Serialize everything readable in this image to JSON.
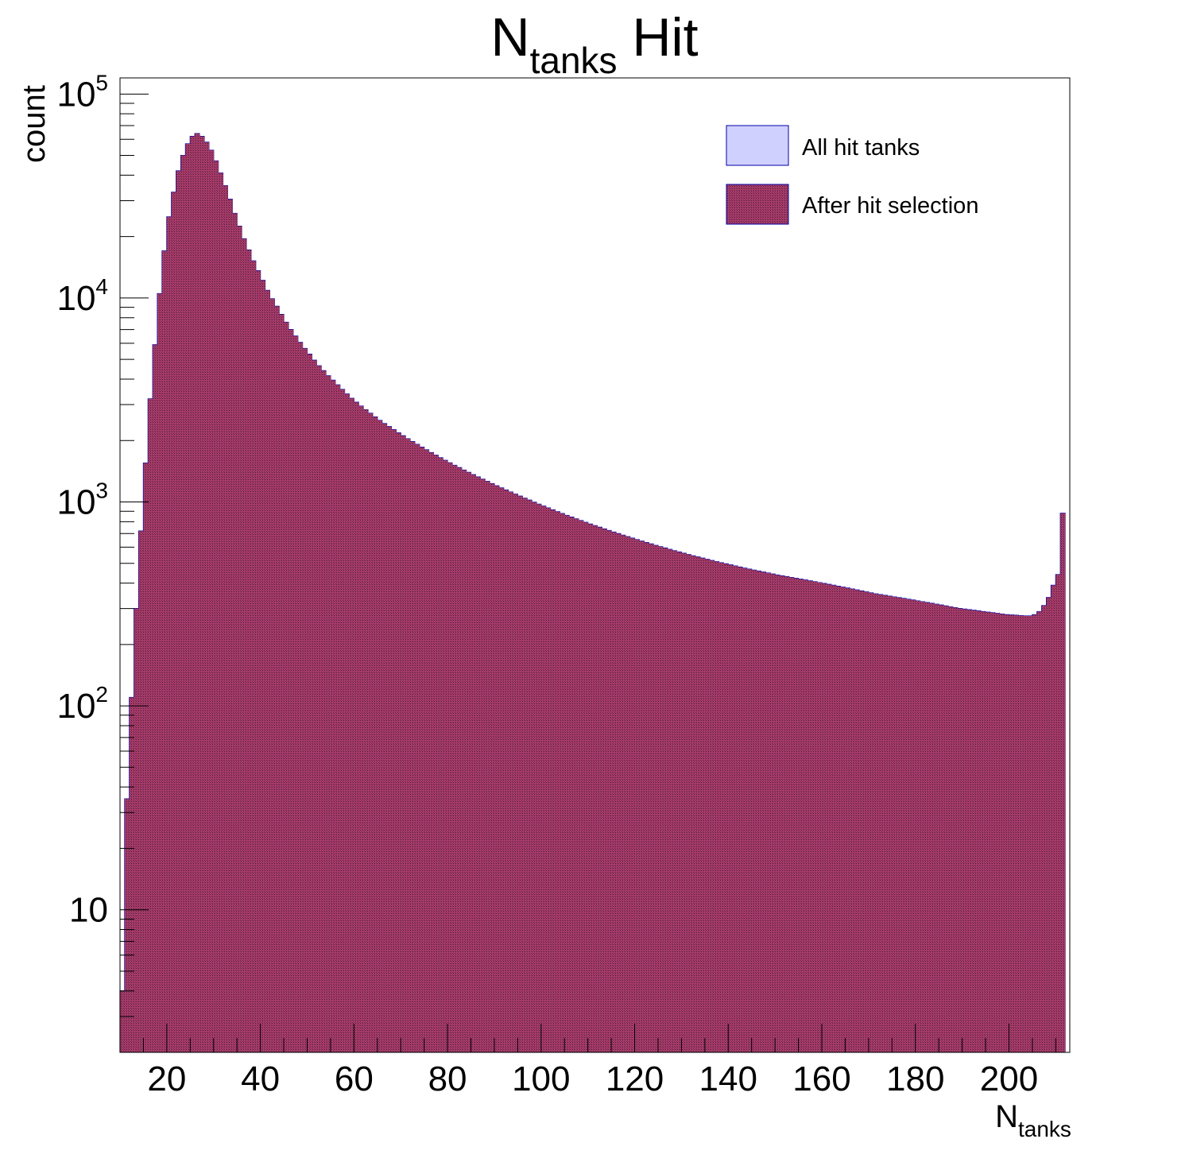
{
  "chart_data": {
    "type": "bar",
    "title": {
      "main": "N",
      "sub": "tanks",
      "rest": " Hit"
    },
    "xlabel": {
      "main": "N",
      "sub": "tanks"
    },
    "ylabel": "count",
    "xlim": [
      10,
      213
    ],
    "ylim": [
      2.0,
      120000
    ],
    "y_log_scale": true,
    "grid": false,
    "legend_position": "top-right",
    "x_ticks": [
      "20",
      "40",
      "60",
      "80",
      "100",
      "120",
      "140",
      "160",
      "180",
      "200"
    ],
    "y_ticks": [
      {
        "base": "10",
        "exp": ""
      },
      {
        "base": "10",
        "exp": "2"
      },
      {
        "base": "10",
        "exp": "3"
      },
      {
        "base": "10",
        "exp": "4"
      },
      {
        "base": "10",
        "exp": "5"
      }
    ],
    "bin_start": 10,
    "bin_width": 1,
    "series": [
      {
        "name": "All hit tanks",
        "color": "#d0d0ff",
        "edge_color": "#0000aa",
        "values": [
          4,
          35,
          110,
          300,
          720,
          1550,
          3200,
          5900,
          10500,
          17000,
          25000,
          33000,
          42000,
          50000,
          57000,
          62000,
          64000,
          62000,
          58000,
          53000,
          47000,
          41000,
          35500,
          30500,
          26000,
          22500,
          19500,
          17200,
          15200,
          13600,
          12200,
          10900,
          9900,
          9100,
          8300,
          7600,
          7000,
          6500,
          6050,
          5650,
          5300,
          4950,
          4650,
          4400,
          4150,
          3950,
          3750,
          3560,
          3380,
          3220,
          3080,
          2950,
          2830,
          2720,
          2610,
          2510,
          2420,
          2340,
          2260,
          2180,
          2110,
          2040,
          1975,
          1915,
          1855,
          1800,
          1745,
          1695,
          1645,
          1598,
          1555,
          1512,
          1472,
          1432,
          1396,
          1360,
          1325,
          1292,
          1260,
          1230,
          1200,
          1172,
          1144,
          1118,
          1092,
          1067,
          1043,
          1020,
          997,
          975,
          954,
          934,
          914,
          895,
          877,
          859,
          842,
          826,
          810,
          794,
          779,
          765,
          751,
          737,
          724,
          711,
          699,
          687,
          675,
          664,
          653,
          642,
          632,
          622,
          612,
          603,
          594,
          585,
          576,
          568,
          560,
          552,
          544,
          537,
          530,
          523,
          516,
          509,
          503,
          497,
          491,
          485,
          479,
          473,
          468,
          463,
          458,
          453,
          448,
          443,
          438,
          434,
          430,
          426,
          422,
          418,
          414,
          410,
          406,
          402,
          398,
          394,
          390,
          386,
          382,
          378,
          374,
          370,
          366,
          362,
          358,
          354,
          351,
          348,
          345,
          342,
          339,
          336,
          333,
          330,
          327,
          324,
          321,
          318,
          315,
          312,
          309,
          306,
          303,
          300,
          298,
          296,
          294,
          292,
          290,
          288,
          286,
          284,
          282,
          280,
          279,
          278,
          277,
          276,
          276,
          280,
          290,
          310,
          340,
          390,
          440,
          880
        ]
      },
      {
        "name": "After hit selection",
        "color": "#a83c6c",
        "edge_color": "#000000",
        "values": [
          4,
          35,
          110,
          300,
          720,
          1550,
          3200,
          5900,
          10500,
          17000,
          25000,
          33000,
          42000,
          50000,
          57000,
          62000,
          64000,
          62000,
          58000,
          53000,
          47000,
          41000,
          35500,
          30500,
          26000,
          22500,
          19500,
          17200,
          15200,
          13600,
          12200,
          10900,
          9900,
          9100,
          8300,
          7600,
          7000,
          6500,
          6050,
          5650,
          5300,
          4950,
          4650,
          4400,
          4150,
          3950,
          3750,
          3560,
          3380,
          3220,
          3080,
          2950,
          2830,
          2720,
          2610,
          2510,
          2420,
          2340,
          2260,
          2180,
          2110,
          2040,
          1975,
          1915,
          1855,
          1800,
          1745,
          1695,
          1645,
          1598,
          1555,
          1512,
          1472,
          1432,
          1396,
          1360,
          1325,
          1292,
          1260,
          1230,
          1200,
          1172,
          1144,
          1118,
          1092,
          1067,
          1043,
          1020,
          997,
          975,
          954,
          934,
          914,
          895,
          877,
          859,
          842,
          826,
          810,
          794,
          779,
          765,
          751,
          737,
          724,
          711,
          699,
          687,
          675,
          664,
          653,
          642,
          632,
          622,
          612,
          603,
          594,
          585,
          576,
          568,
          560,
          552,
          544,
          537,
          530,
          523,
          516,
          509,
          503,
          497,
          491,
          485,
          479,
          473,
          468,
          463,
          458,
          453,
          448,
          443,
          438,
          434,
          430,
          426,
          422,
          418,
          414,
          410,
          406,
          402,
          398,
          394,
          390,
          386,
          382,
          378,
          374,
          370,
          366,
          362,
          358,
          354,
          351,
          348,
          345,
          342,
          339,
          336,
          333,
          330,
          327,
          324,
          321,
          318,
          315,
          312,
          309,
          306,
          303,
          300,
          298,
          296,
          294,
          292,
          290,
          288,
          286,
          284,
          282,
          280,
          279,
          278,
          277,
          276,
          276,
          280,
          290,
          310,
          340,
          390,
          440,
          880
        ]
      }
    ]
  }
}
